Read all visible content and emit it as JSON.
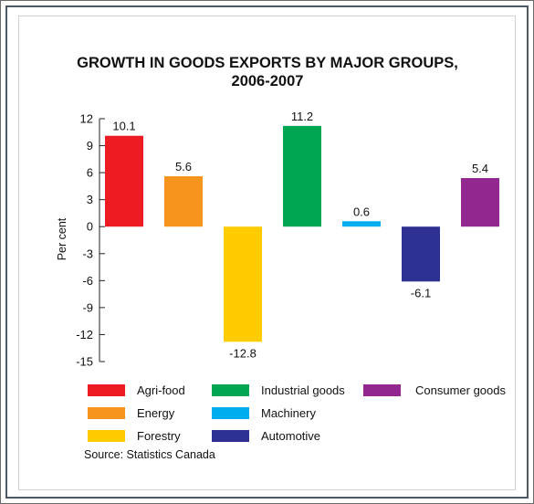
{
  "chart_data": {
    "type": "bar",
    "title_lines": [
      "GROWTH IN GOODS EXPORTS BY MAJOR GROUPS,",
      "2006-2007"
    ],
    "ylabel": "Per cent",
    "ylim": [
      -15,
      12
    ],
    "yticks": [
      "12",
      "9",
      "6",
      "3",
      "0",
      "-3",
      "-6",
      "-9",
      "-12",
      "-15"
    ],
    "ytick_values": [
      12,
      9,
      6,
      3,
      0,
      -3,
      -6,
      -9,
      -12,
      -15
    ],
    "categories": [
      "Agri-food",
      "Energy",
      "Forestry",
      "Industrial goods",
      "Machinery",
      "Automotive",
      "Consumer goods"
    ],
    "values": [
      10.1,
      5.6,
      -12.8,
      11.2,
      0.6,
      -6.1,
      5.4
    ],
    "data_labels": [
      "10.1",
      "5.6",
      "-12.8",
      "11.2",
      "0.6",
      "-6.1",
      "5.4"
    ],
    "colors": [
      "#ed1c24",
      "#f7941d",
      "#ffcc00",
      "#00a651",
      "#00aeef",
      "#2e3192",
      "#92278f"
    ],
    "legend": {
      "columns": [
        [
          "Agri-food",
          "Energy",
          "Forestry"
        ],
        [
          "Industrial goods",
          "Machinery",
          "Automotive"
        ],
        [
          "Consumer goods"
        ]
      ]
    },
    "source": "Source: Statistics Canada"
  }
}
